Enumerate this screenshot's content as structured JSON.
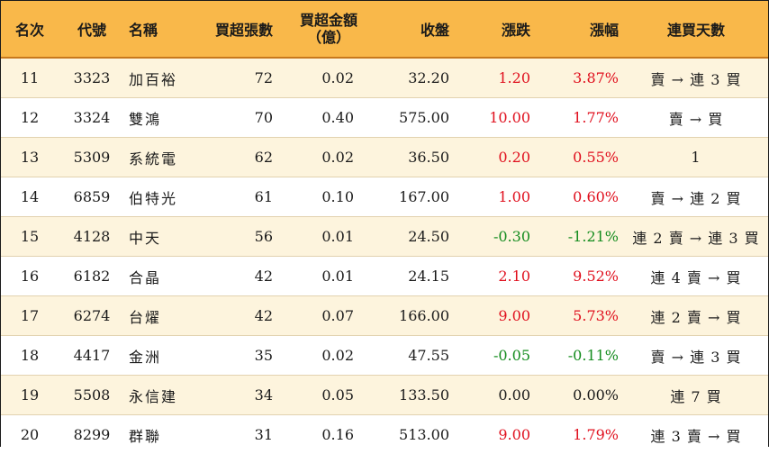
{
  "headers": {
    "rank": "名次",
    "code": "代號",
    "name": "名稱",
    "net_lots": "買超張數",
    "net_amount_line1": "買超金額",
    "net_amount_line2": "（億）",
    "close": "收盤",
    "change": "漲跌",
    "change_pct": "漲幅",
    "streak": "連買天數"
  },
  "rows": [
    {
      "rank": "11",
      "code": "3323",
      "name": "加百裕",
      "lots": "72",
      "amount": "0.02",
      "close": "32.20",
      "change": "1.20",
      "pct": "3.87%",
      "dir": "pos",
      "streak": "賣 → 連 3 買"
    },
    {
      "rank": "12",
      "code": "3324",
      "name": "雙鴻",
      "lots": "70",
      "amount": "0.40",
      "close": "575.00",
      "change": "10.00",
      "pct": "1.77%",
      "dir": "pos",
      "streak": "賣 → 買"
    },
    {
      "rank": "13",
      "code": "5309",
      "name": "系統電",
      "lots": "62",
      "amount": "0.02",
      "close": "36.50",
      "change": "0.20",
      "pct": "0.55%",
      "dir": "pos",
      "streak": "1"
    },
    {
      "rank": "14",
      "code": "6859",
      "name": "伯特光",
      "lots": "61",
      "amount": "0.10",
      "close": "167.00",
      "change": "1.00",
      "pct": "0.60%",
      "dir": "pos",
      "streak": "賣 → 連 2 買"
    },
    {
      "rank": "15",
      "code": "4128",
      "name": "中天",
      "lots": "56",
      "amount": "0.01",
      "close": "24.50",
      "change": "-0.30",
      "pct": "-1.21%",
      "dir": "neg",
      "streak": "連 2 賣 → 連 3 買"
    },
    {
      "rank": "16",
      "code": "6182",
      "name": "合晶",
      "lots": "42",
      "amount": "0.01",
      "close": "24.15",
      "change": "2.10",
      "pct": "9.52%",
      "dir": "pos",
      "streak": "連 4 賣 → 買"
    },
    {
      "rank": "17",
      "code": "6274",
      "name": "台燿",
      "lots": "42",
      "amount": "0.07",
      "close": "166.00",
      "change": "9.00",
      "pct": "5.73%",
      "dir": "pos",
      "streak": "連 2 賣 → 買"
    },
    {
      "rank": "18",
      "code": "4417",
      "name": "金洲",
      "lots": "35",
      "amount": "0.02",
      "close": "47.55",
      "change": "-0.05",
      "pct": "-0.11%",
      "dir": "neg",
      "streak": "賣 → 連 3 買"
    },
    {
      "rank": "19",
      "code": "5508",
      "name": "永信建",
      "lots": "34",
      "amount": "0.05",
      "close": "133.50",
      "change": "0.00",
      "pct": "0.00%",
      "dir": "zero",
      "streak": "連 7 買"
    },
    {
      "rank": "20",
      "code": "8299",
      "name": "群聯",
      "lots": "31",
      "amount": "0.16",
      "close": "513.00",
      "change": "9.00",
      "pct": "1.79%",
      "dir": "pos",
      "streak": "連 3 賣 → 買"
    }
  ],
  "colors": {
    "header_bg": "#f9b84a",
    "odd_row_bg": "#fdf4dd",
    "up": "#e0101e",
    "down": "#148c1e"
  }
}
